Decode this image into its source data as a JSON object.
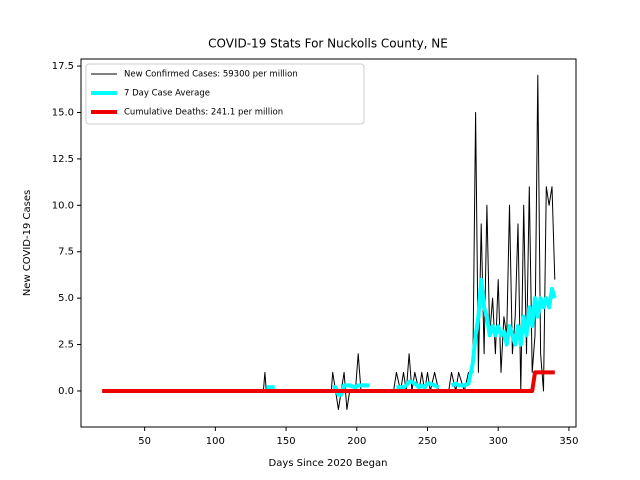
{
  "chart_data": {
    "type": "line",
    "title": "COVID-19 Stats For Nuckolls County, NE",
    "xlabel": "Days Since 2020 Began",
    "ylabel": "New COVID-19 Cases",
    "xlim": [
      5,
      355
    ],
    "ylim": [
      -1.94,
      17.88
    ],
    "xticks": [
      50,
      100,
      150,
      200,
      250,
      300,
      350
    ],
    "yticks": [
      {
        "value": 0,
        "label": "0.0"
      },
      {
        "value": 2.5,
        "label": "2.5"
      },
      {
        "value": 5,
        "label": "5.0"
      },
      {
        "value": 7.5,
        "label": "7.5"
      },
      {
        "value": 10,
        "label": "10.0"
      },
      {
        "value": 12.5,
        "label": "12.5"
      },
      {
        "value": 15,
        "label": "15.0"
      },
      {
        "value": 17.5,
        "label": "17.5"
      }
    ],
    "grid": false,
    "legend": "upper left",
    "x": [
      20,
      134,
      135,
      136,
      142,
      143,
      182,
      183,
      185,
      187,
      189,
      191,
      193,
      195,
      199,
      201,
      203,
      209,
      210,
      226,
      228,
      231,
      233,
      235,
      237,
      239,
      241,
      244,
      246,
      248,
      250,
      252,
      255,
      258,
      259,
      265,
      267,
      270,
      272,
      276,
      279,
      282,
      284,
      286,
      288,
      290,
      292,
      294,
      296,
      298,
      300,
      302,
      304,
      306,
      308,
      310,
      312,
      314,
      316,
      318,
      320,
      322,
      324,
      326,
      328,
      330,
      332,
      334,
      336,
      338,
      340
    ],
    "series": [
      {
        "name": "New Confirmed Cases: 59300 per million",
        "color": "#000000",
        "width": 1,
        "values": [
          0,
          0,
          1,
          0,
          0,
          0,
          0,
          1,
          0,
          -1,
          0,
          1,
          -1,
          0,
          0,
          2,
          0,
          0,
          0,
          0,
          1,
          0,
          1,
          0,
          2,
          0,
          1,
          0,
          1,
          0,
          1,
          0,
          1,
          0,
          0,
          0,
          1,
          0,
          1,
          0,
          1,
          1,
          15,
          1,
          9,
          2,
          10,
          3,
          5,
          2,
          6,
          1,
          4,
          3,
          10,
          2,
          4,
          9,
          0,
          10,
          2,
          11,
          1,
          3,
          17,
          2,
          0,
          11,
          10,
          11,
          6
        ]
      },
      {
        "name": "7 Day Case Average",
        "color": "#00ffff",
        "width": 4,
        "values": [
          null,
          null,
          null,
          0.2,
          0.2,
          null,
          null,
          0.2,
          0.2,
          -0.2,
          -0.2,
          0.3,
          0.3,
          0.3,
          0.2,
          0.3,
          0.3,
          0.3,
          null,
          null,
          0.2,
          0.2,
          0.2,
          0.3,
          0.5,
          0.5,
          0.4,
          0.2,
          0.3,
          0.2,
          0.4,
          0.4,
          0.3,
          0.2,
          null,
          null,
          0.3,
          0.4,
          0.3,
          0.3,
          0.4,
          1.5,
          3,
          4,
          6,
          4.5,
          4,
          3,
          3.5,
          3,
          3.5,
          3,
          3.2,
          2.5,
          3.5,
          3,
          2.5,
          3.5,
          2.5,
          4,
          3,
          4.5,
          3.5,
          5,
          4,
          5,
          4.5,
          5,
          4.5,
          5.5,
          5
        ]
      },
      {
        "name": "Cumulative Deaths: 241.1 per million",
        "color": "#ee0000",
        "width": 4,
        "values": [
          0,
          0,
          0,
          0,
          0,
          0,
          0,
          0,
          0,
          0,
          0,
          0,
          0,
          0,
          0,
          0,
          0,
          0,
          0,
          0,
          0,
          0,
          0,
          0,
          0,
          0,
          0,
          0,
          0,
          0,
          0,
          0,
          0,
          0,
          0,
          0,
          0,
          0,
          0,
          0,
          0,
          0,
          0,
          0,
          0,
          0,
          0,
          0,
          0,
          0,
          0,
          0,
          0,
          0,
          0,
          0,
          0,
          0,
          0,
          0,
          0,
          0,
          0,
          1,
          1,
          1,
          1,
          1,
          1,
          1,
          1
        ]
      }
    ]
  }
}
